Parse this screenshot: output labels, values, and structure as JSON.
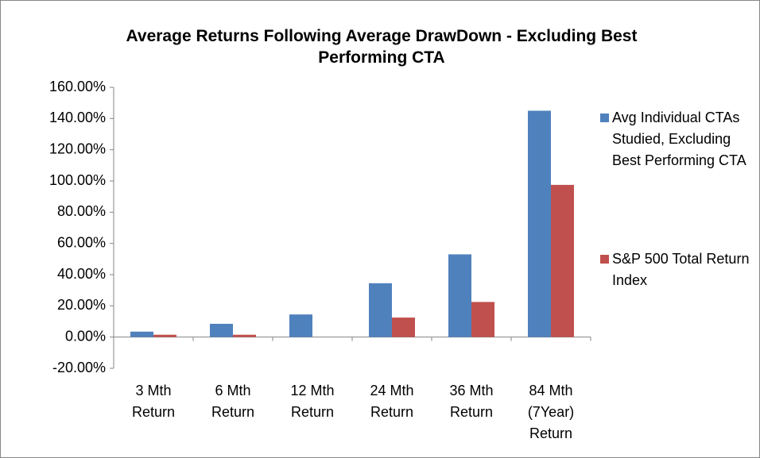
{
  "chart_data": {
    "type": "bar",
    "title": "Average Returns Following Average DrawDown - Excluding Best Performing CTA",
    "categories": [
      [
        "3 Mth",
        "Return"
      ],
      [
        "6 Mth",
        "Return"
      ],
      [
        "12 Mth",
        "Return"
      ],
      [
        "24 Mth",
        "Return"
      ],
      [
        "36 Mth",
        "Return"
      ],
      [
        "84 Mth",
        "(7Year)",
        "Return"
      ]
    ],
    "series": [
      {
        "name": "Avg Individual CTAs Studied, Excluding Best Performing CTA",
        "color": "#4f81bd",
        "values": [
          3.5,
          8.5,
          14.5,
          34.5,
          53,
          145
        ]
      },
      {
        "name": "S&P 500 Total Return Index",
        "color": "#c0504d",
        "values": [
          1.5,
          1.5,
          0,
          12.5,
          22.5,
          97.5
        ]
      }
    ],
    "ylim": [
      -20,
      160
    ],
    "yticks": [
      {
        "value": -20,
        "label": "-20.00%"
      },
      {
        "value": 0,
        "label": "0.00%"
      },
      {
        "value": 20,
        "label": "20.00%"
      },
      {
        "value": 40,
        "label": "40.00%"
      },
      {
        "value": 60,
        "label": "60.00%"
      },
      {
        "value": 80,
        "label": "80.00%"
      },
      {
        "value": 100,
        "label": "100.00%"
      },
      {
        "value": 120,
        "label": "120.00%"
      },
      {
        "value": 140,
        "label": "140.00%"
      },
      {
        "value": 160,
        "label": "160.00%"
      }
    ],
    "legend": "right"
  }
}
